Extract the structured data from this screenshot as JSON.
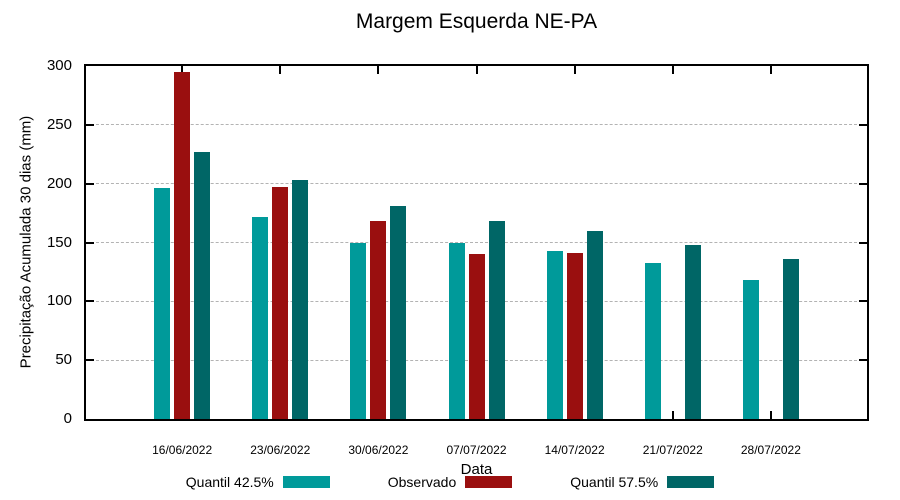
{
  "title": "Margem Esquerda NE-PA",
  "chart_data": {
    "type": "bar",
    "title": "Margem Esquerda NE-PA",
    "xlabel": "Data",
    "ylabel": "Precipitação Acumulada 30 dias (mm)",
    "ylim": [
      0,
      300
    ],
    "yticks": [
      0,
      50,
      100,
      150,
      200,
      250,
      300
    ],
    "grid": "horizontal dashed gridlines at 50-250",
    "legend_position": "bottom",
    "categories": [
      "16/06/2022",
      "23/06/2022",
      "30/06/2022",
      "07/07/2022",
      "14/07/2022",
      "21/07/2022",
      "28/07/2022"
    ],
    "series": [
      {
        "name": "Quantil 42.5%",
        "color": "#009A9A",
        "values": [
          196,
          172,
          150,
          150,
          143,
          133,
          118
        ]
      },
      {
        "name": "Observado",
        "color": "#9A0F0F",
        "values": [
          295,
          197,
          168,
          140,
          141,
          null,
          null
        ]
      },
      {
        "name": "Quantil 57.5%",
        "color": "#006666",
        "values": [
          227,
          203,
          181,
          168,
          160,
          148,
          136
        ]
      }
    ]
  },
  "colors": {
    "background": "#ffffff",
    "axis": "#000000",
    "grid": "#b3b3b3",
    "text": "#000000"
  }
}
